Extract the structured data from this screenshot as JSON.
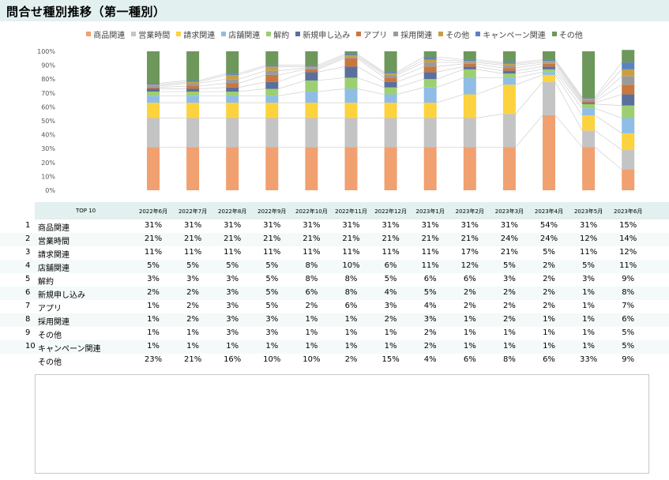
{
  "page": {
    "title": "問合せ種別推移（第一種別）"
  },
  "chart_data": {
    "type": "bar",
    "stacked": true,
    "percent": true,
    "categories": [
      "2022年6月",
      "2022年7月",
      "2022年8月",
      "2022年9月",
      "2022年10月",
      "2022年11月",
      "2022年12月",
      "2023年1月",
      "2023年2月",
      "2023年3月",
      "2023年4月",
      "2023年5月",
      "2023年6月"
    ],
    "series": [
      {
        "name": "商品関連",
        "color": "#f1a070",
        "values": [
          31,
          31,
          31,
          31,
          31,
          31,
          31,
          31,
          31,
          31,
          54,
          31,
          15
        ]
      },
      {
        "name": "営業時間",
        "color": "#c4c4c4",
        "values": [
          21,
          21,
          21,
          21,
          21,
          21,
          21,
          21,
          21,
          24,
          24,
          12,
          14
        ]
      },
      {
        "name": "請求関連",
        "color": "#fcd23e",
        "values": [
          11,
          11,
          11,
          11,
          11,
          11,
          11,
          11,
          17,
          21,
          5,
          11,
          12
        ]
      },
      {
        "name": "店舗関連",
        "color": "#8fbde6",
        "values": [
          5,
          5,
          5,
          5,
          8,
          10,
          6,
          11,
          12,
          5,
          2,
          5,
          11
        ]
      },
      {
        "name": "解約",
        "color": "#9dcf72",
        "values": [
          3,
          3,
          3,
          5,
          8,
          8,
          5,
          6,
          6,
          3,
          2,
          3,
          9
        ]
      },
      {
        "name": "新規申し込み",
        "color": "#5a6f9c",
        "values": [
          2,
          2,
          3,
          5,
          6,
          8,
          4,
          5,
          2,
          2,
          2,
          1,
          8
        ]
      },
      {
        "name": "アプリ",
        "color": "#c8773e",
        "values": [
          1,
          2,
          3,
          5,
          2,
          6,
          3,
          4,
          2,
          2,
          2,
          1,
          7
        ]
      },
      {
        "name": "採用関連",
        "color": "#9a9a9a",
        "values": [
          1,
          2,
          3,
          3,
          1,
          1,
          2,
          3,
          1,
          2,
          1,
          1,
          6
        ]
      },
      {
        "name": "その他",
        "color": "#c7a043",
        "values": [
          1,
          1,
          3,
          3,
          1,
          1,
          1,
          2,
          1,
          1,
          1,
          1,
          5
        ]
      },
      {
        "name": "キャンペーン関連",
        "color": "#5b82c0",
        "values": [
          1,
          1,
          1,
          1,
          1,
          1,
          1,
          2,
          1,
          1,
          1,
          1,
          5
        ]
      },
      {
        "name": "その他",
        "color": "#6e975c",
        "values": [
          23,
          21,
          16,
          10,
          10,
          2,
          15,
          4,
          6,
          8,
          6,
          33,
          9
        ]
      }
    ],
    "ylim": [
      0,
      100
    ],
    "yticks": [
      "0%",
      "10%",
      "20%",
      "30%",
      "40%",
      "50%",
      "60%",
      "70%",
      "80%",
      "90%",
      "100%"
    ],
    "grid": false,
    "legend_position": "top"
  },
  "table": {
    "header_label": "TOP 10",
    "columns": [
      "2022年6月",
      "2022年7月",
      "2022年8月",
      "2022年9月",
      "2022年10月",
      "2022年11月",
      "2022年12月",
      "2023年1月",
      "2023年2月",
      "2023年3月",
      "2023年4月",
      "2023年5月",
      "2023年6月"
    ],
    "rows": [
      {
        "rank": "1",
        "label": "商品関連",
        "values": [
          "31%",
          "31%",
          "31%",
          "31%",
          "31%",
          "31%",
          "31%",
          "31%",
          "31%",
          "31%",
          "54%",
          "31%",
          "15%"
        ]
      },
      {
        "rank": "2",
        "label": "営業時間",
        "values": [
          "21%",
          "21%",
          "21%",
          "21%",
          "21%",
          "21%",
          "21%",
          "21%",
          "21%",
          "24%",
          "24%",
          "12%",
          "14%"
        ]
      },
      {
        "rank": "3",
        "label": "請求関連",
        "values": [
          "11%",
          "11%",
          "11%",
          "11%",
          "11%",
          "11%",
          "11%",
          "11%",
          "17%",
          "21%",
          "5%",
          "11%",
          "12%"
        ]
      },
      {
        "rank": "4",
        "label": "店舗関連",
        "values": [
          "5%",
          "5%",
          "5%",
          "5%",
          "8%",
          "10%",
          "6%",
          "11%",
          "12%",
          "5%",
          "2%",
          "5%",
          "11%"
        ]
      },
      {
        "rank": "5",
        "label": "解約",
        "values": [
          "3%",
          "3%",
          "3%",
          "5%",
          "8%",
          "8%",
          "5%",
          "6%",
          "6%",
          "3%",
          "2%",
          "3%",
          "9%"
        ]
      },
      {
        "rank": "6",
        "label": "新規申し込み",
        "values": [
          "2%",
          "2%",
          "3%",
          "5%",
          "6%",
          "8%",
          "4%",
          "5%",
          "2%",
          "2%",
          "2%",
          "1%",
          "8%"
        ]
      },
      {
        "rank": "7",
        "label": "アプリ",
        "values": [
          "1%",
          "2%",
          "3%",
          "5%",
          "2%",
          "6%",
          "3%",
          "4%",
          "2%",
          "2%",
          "2%",
          "1%",
          "7%"
        ]
      },
      {
        "rank": "8",
        "label": "採用関連",
        "values": [
          "1%",
          "2%",
          "3%",
          "3%",
          "1%",
          "1%",
          "2%",
          "3%",
          "1%",
          "2%",
          "1%",
          "1%",
          "6%"
        ]
      },
      {
        "rank": "9",
        "label": "その他",
        "values": [
          "1%",
          "1%",
          "3%",
          "3%",
          "1%",
          "1%",
          "1%",
          "2%",
          "1%",
          "1%",
          "1%",
          "1%",
          "5%"
        ]
      },
      {
        "rank": "10",
        "label": "キャンペーン関連",
        "values": [
          "1%",
          "1%",
          "1%",
          "1%",
          "1%",
          "1%",
          "1%",
          "2%",
          "1%",
          "1%",
          "1%",
          "1%",
          "5%"
        ]
      },
      {
        "rank": "",
        "label": "その他",
        "values": [
          "23%",
          "21%",
          "16%",
          "10%",
          "10%",
          "2%",
          "15%",
          "4%",
          "6%",
          "8%",
          "6%",
          "33%",
          "9%"
        ]
      }
    ]
  }
}
